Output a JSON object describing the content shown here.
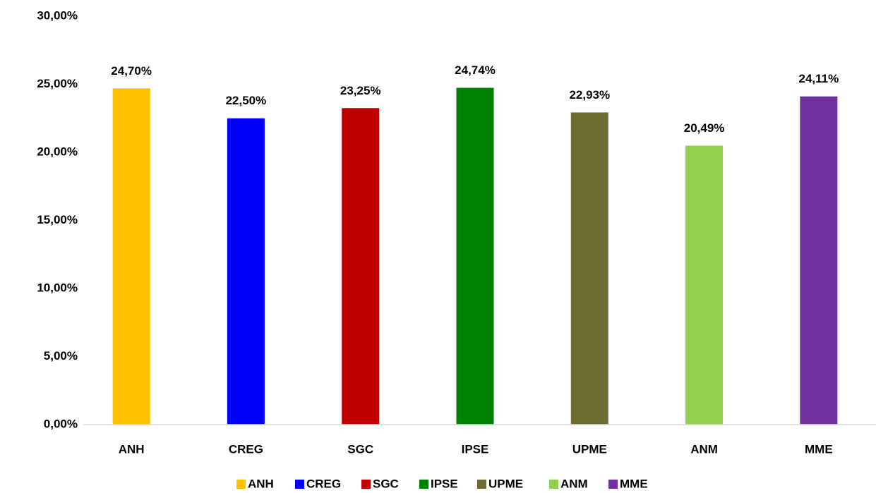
{
  "chart_data": {
    "type": "bar",
    "categories": [
      "ANH",
      "CREG",
      "SGC",
      "IPSE",
      "UPME",
      "ANM",
      "MME"
    ],
    "values": [
      24.7,
      22.5,
      23.25,
      24.74,
      22.93,
      20.49,
      24.11
    ],
    "value_labels": [
      "24,70%",
      "22,50%",
      "23,25%",
      "24,74%",
      "22,93%",
      "20,49%",
      "24,11%"
    ],
    "colors": [
      "#FFC000",
      "#0000FF",
      "#C00000",
      "#008000",
      "#6B6B32",
      "#92D050",
      "#7030A0"
    ],
    "ylim": [
      0,
      30
    ],
    "yticks": [
      {
        "value": 0,
        "label": "0,00%"
      },
      {
        "value": 5,
        "label": "5,00%"
      },
      {
        "value": 10,
        "label": "10,00%"
      },
      {
        "value": 15,
        "label": "15,00%"
      },
      {
        "value": 20,
        "label": "20,00%"
      },
      {
        "value": 25,
        "label": "25,00%"
      },
      {
        "value": 30,
        "label": "30,00%"
      }
    ],
    "grid": false,
    "legend": "bottom"
  }
}
